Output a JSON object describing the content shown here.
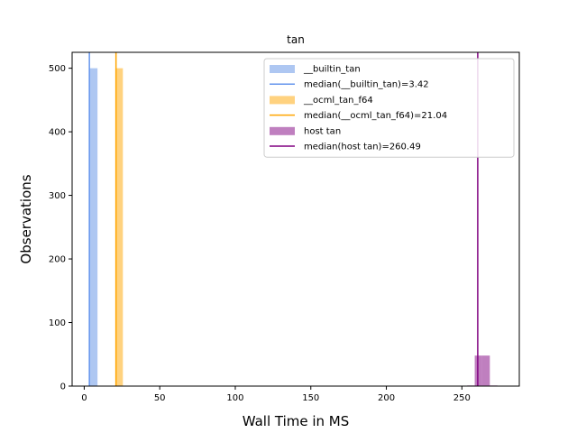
{
  "chart_data": {
    "type": "bar",
    "title": "tan",
    "xlabel": "Wall Time in MS",
    "ylabel": "Observations",
    "xlim": [
      -8,
      288
    ],
    "ylim": [
      0,
      525
    ],
    "xticks": [
      0,
      50,
      100,
      150,
      200,
      250
    ],
    "yticks": [
      0,
      100,
      200,
      300,
      400,
      500
    ],
    "grid": false,
    "legend_position": "top-right",
    "series": [
      {
        "name": "__builtin_tan",
        "color": "#aec7f2",
        "median_name": "median(__builtin_tan)=3.42",
        "median": 3.42,
        "median_color": "#6495ed",
        "bins": [
          {
            "x0": 3.2,
            "x1": 8.8,
            "count": 500
          }
        ]
      },
      {
        "name": "__ocml_tan_f64",
        "color": "#ffd27f",
        "median_name": "median(__ocml_tan_f64)=21.04",
        "median": 21.04,
        "median_color": "#ffa500",
        "bins": [
          {
            "x0": 20.6,
            "x1": 25.6,
            "count": 500
          }
        ]
      },
      {
        "name": "host tan",
        "color": "#bf7fbf",
        "median_name": "median(host tan)=260.49",
        "median": 260.49,
        "median_color": "#800080",
        "bins": [
          {
            "x0": 253.5,
            "x1": 258.5,
            "count": 1
          },
          {
            "x0": 258.5,
            "x1": 263.5,
            "count": 48
          },
          {
            "x0": 263.5,
            "x1": 268.5,
            "count": 48
          },
          {
            "x0": 268.5,
            "x1": 273.5,
            "count": 1
          }
        ]
      }
    ]
  }
}
